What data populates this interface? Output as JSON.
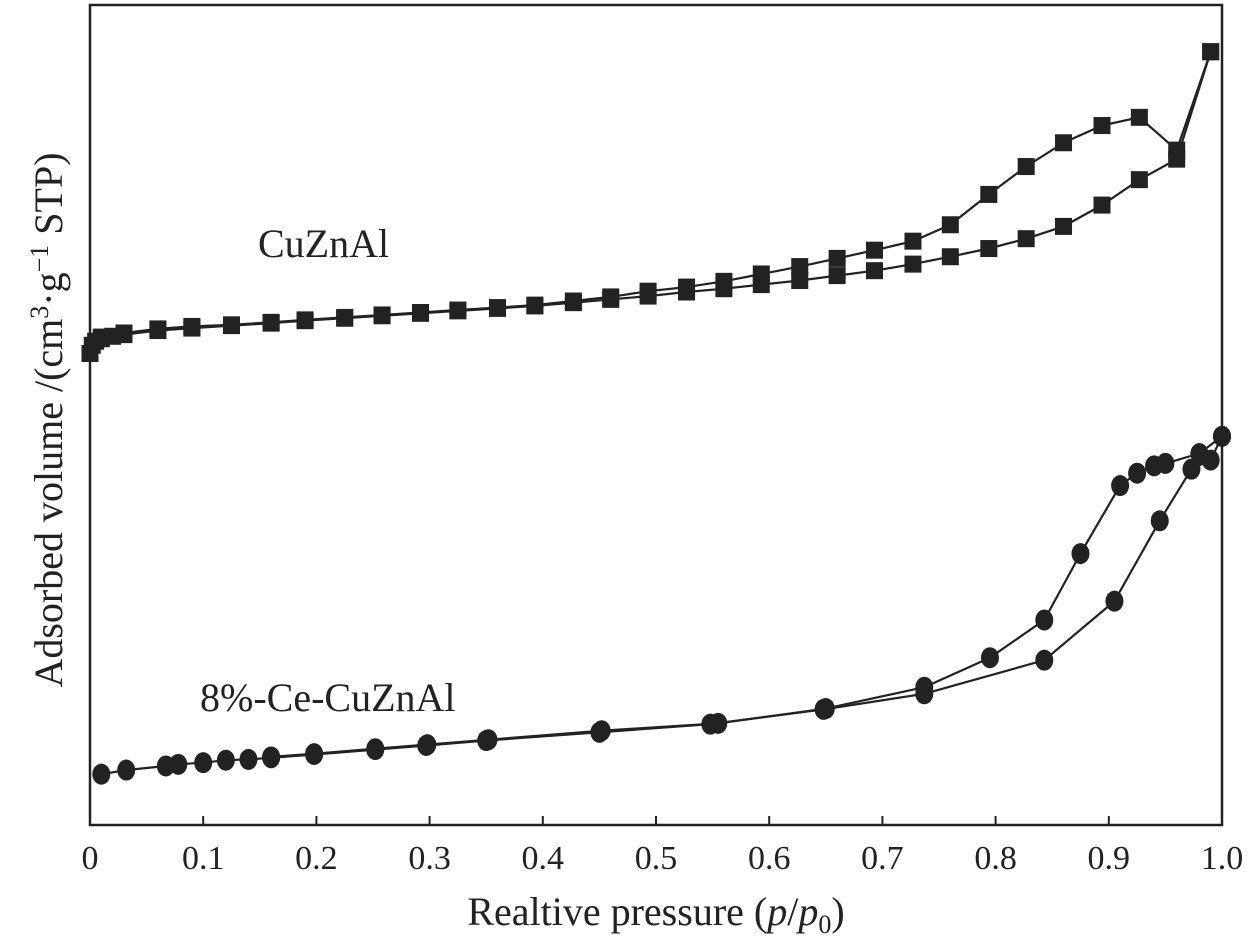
{
  "chart_data": {
    "type": "line",
    "xlabel": "Realtive pressure (p/p0)",
    "xlabel_parts": {
      "prefix": "Realtive pressure (",
      "p": "p",
      "slash": "/",
      "p0": "p",
      "sub": "0",
      "suffix": ")"
    },
    "ylabel": "Adsorbed volume /(cm3·g−1 STP)",
    "ylabel_parts": {
      "prefix": "Adsorbed volume /(cm",
      "sup1": "3",
      "mid": "·g",
      "sup2": "−1",
      "suffix": " STP)"
    },
    "xlim": [
      0,
      1.0
    ],
    "ylim": [
      0,
      100
    ],
    "x_ticks": [
      0,
      0.1,
      0.2,
      0.3,
      0.4,
      0.5,
      0.6,
      0.7,
      0.8,
      0.9,
      1.0
    ],
    "x_tick_labels": [
      "0",
      "0.1",
      "0.2",
      "0.3",
      "0.4",
      "0.5",
      "0.6",
      "0.7",
      "0.8",
      "0.9",
      "1.0"
    ],
    "y_ticks_shown": false,
    "grid": false,
    "series": [
      {
        "name": "CuZnAl",
        "marker": "square",
        "color": "#222222",
        "branches": [
          {
            "x": [
              0.0,
              0.002,
              0.005,
              0.01,
              0.02,
              0.03,
              0.06,
              0.09,
              0.125,
              0.16,
              0.19,
              0.225,
              0.258,
              0.292,
              0.325,
              0.36,
              0.393,
              0.427,
              0.46,
              0.493,
              0.527,
              0.56,
              0.593,
              0.627,
              0.66,
              0.693,
              0.727,
              0.76,
              0.794,
              0.827,
              0.86,
              0.894,
              0.927,
              0.96,
              0.99
            ],
            "y": [
              57.5,
              58.5,
              59.0,
              59.3,
              59.6,
              59.8,
              60.3,
              60.6,
              60.9,
              61.2,
              61.5,
              61.8,
              62.1,
              62.4,
              62.7,
              63.0,
              63.3,
              63.7,
              64.1,
              64.5,
              65.0,
              65.4,
              65.9,
              66.4,
              67.0,
              67.6,
              68.4,
              69.3,
              70.3,
              71.5,
              73.0,
              75.6,
              78.7,
              81.2,
              94.3
            ]
          },
          {
            "x": [
              0.99,
              0.96,
              0.927,
              0.894,
              0.86,
              0.827,
              0.794,
              0.76,
              0.727,
              0.693,
              0.66,
              0.627,
              0.593,
              0.56,
              0.527,
              0.493,
              0.46,
              0.427,
              0.393,
              0.36,
              0.325,
              0.292,
              0.258,
              0.225,
              0.19,
              0.16,
              0.125,
              0.09,
              0.06,
              0.03,
              0.01
            ],
            "y": [
              94.3,
              82.3,
              86.3,
              85.3,
              83.2,
              80.3,
              76.9,
              73.2,
              71.2,
              70.1,
              69.1,
              68.1,
              67.2,
              66.3,
              65.6,
              65.1,
              64.4,
              63.9,
              63.4,
              63.1,
              62.8,
              62.5,
              62.2,
              61.9,
              61.6,
              61.3,
              61.0,
              60.8,
              60.5,
              60.0,
              59.5
            ]
          }
        ]
      },
      {
        "name": "8%-Ce-CuZnAl",
        "marker": "circle",
        "color": "#222222",
        "branches": [
          {
            "x": [
              0.01,
              0.032,
              0.067,
              0.078,
              0.1,
              0.12,
              0.14,
              0.16,
              0.198,
              0.252,
              0.297,
              0.35,
              0.45,
              0.548,
              0.648,
              0.737,
              0.843,
              0.905,
              0.945,
              0.973,
              0.99,
              1.0
            ],
            "y": [
              6.2,
              6.7,
              7.2,
              7.4,
              7.6,
              7.9,
              8.0,
              8.2,
              8.6,
              9.2,
              9.7,
              10.3,
              11.3,
              12.3,
              14.1,
              16.0,
              20.1,
              27.3,
              37.1,
              43.4,
              44.5,
              47.4
            ]
          },
          {
            "x": [
              1.0,
              0.98,
              0.95,
              0.94,
              0.925,
              0.91,
              0.875,
              0.843,
              0.795,
              0.737,
              0.65,
              0.555,
              0.452,
              0.352,
              0.298,
              0.252,
              0.198,
              0.16
            ],
            "y": [
              47.4,
              45.3,
              44.1,
              43.8,
              42.9,
              41.4,
              33.1,
              25.0,
              20.4,
              16.8,
              14.2,
              12.4,
              11.5,
              10.4,
              9.8,
              9.3,
              8.7,
              8.3
            ]
          }
        ]
      }
    ]
  }
}
